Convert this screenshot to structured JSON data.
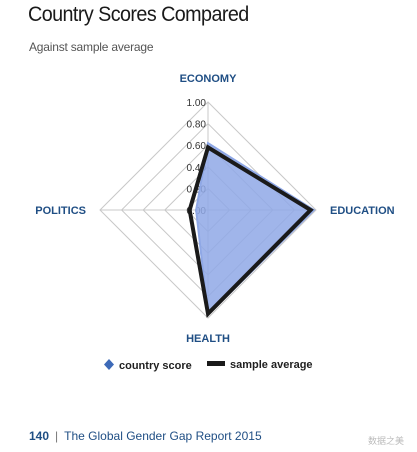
{
  "header": {
    "title": "Country Scores Compared",
    "subtitle": "Against sample average"
  },
  "chart_data": {
    "type": "radar",
    "axes": [
      "ECONOMY",
      "EDUCATION",
      "HEALTH",
      "POLITICS"
    ],
    "ticks": [
      "1.00",
      "0.80",
      "0.60",
      "0.40",
      "0.20",
      "0.00"
    ],
    "range": [
      0,
      1
    ],
    "series": [
      {
        "name": "country score",
        "values": [
          0.62,
          0.98,
          0.97,
          0.11
        ],
        "color": "#8fa8e6",
        "style": "filled"
      },
      {
        "name": "sample average",
        "values": [
          0.58,
          0.95,
          0.96,
          0.17
        ],
        "color": "#1a1a1a",
        "style": "line"
      }
    ],
    "legend_position": "bottom"
  },
  "legend": {
    "country_label": "country score",
    "average_label": "sample average",
    "country_marker_color": "#3d6ab8"
  },
  "footer": {
    "page_number": "140",
    "separator": "|",
    "report_title": "The Global Gender Gap Report 2015"
  },
  "watermark": "数据之美"
}
